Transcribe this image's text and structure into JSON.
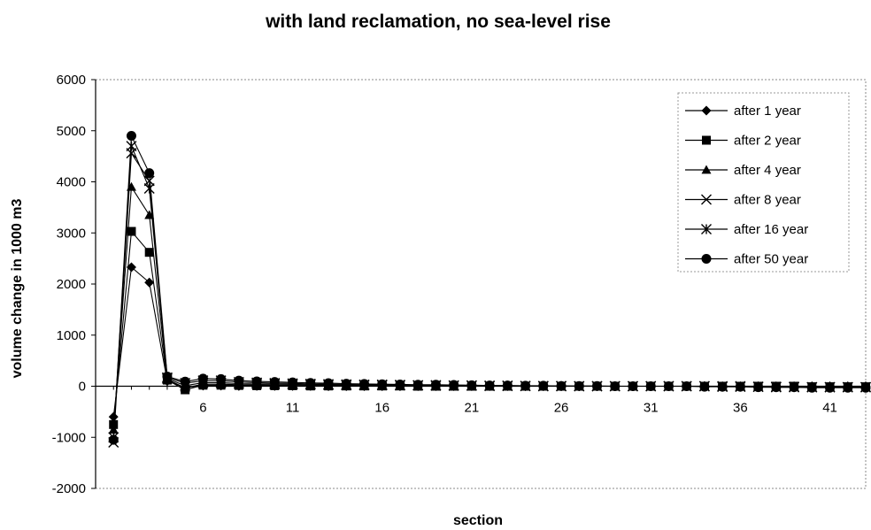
{
  "chart_data": {
    "type": "line",
    "title": "with land reclamation, no sea-level rise",
    "xlabel": "section",
    "ylabel": "volume change in 1000 m3",
    "ylim": [
      -2000,
      6000
    ],
    "yticks": [
      6000,
      5000,
      4000,
      3000,
      2000,
      1000,
      0,
      -1000,
      -2000
    ],
    "xlim": [
      0,
      43
    ],
    "xticks": [
      6,
      11,
      16,
      21,
      26,
      31,
      36,
      41
    ],
    "legend_position": "top-right",
    "grid": false,
    "x": [
      1,
      2,
      3,
      4,
      5,
      6,
      7,
      8,
      9,
      10,
      11,
      12,
      13,
      14,
      15,
      16,
      17,
      18,
      19,
      20,
      21,
      22,
      23,
      24,
      25,
      26,
      27,
      28,
      29,
      30,
      31,
      32,
      33,
      34,
      35,
      36,
      37,
      38,
      39,
      40,
      41,
      42,
      43
    ],
    "series": [
      {
        "name": "after 1 year",
        "marker": "diamond",
        "values": [
          -600,
          2330,
          2030,
          100,
          -20,
          10,
          10,
          5,
          5,
          5,
          5,
          5,
          0,
          0,
          0,
          0,
          0,
          0,
          0,
          0,
          0,
          0,
          0,
          0,
          0,
          0,
          0,
          0,
          0,
          0,
          0,
          0,
          0,
          0,
          0,
          0,
          0,
          0,
          0,
          0,
          0,
          0,
          0
        ]
      },
      {
        "name": "after 2 year",
        "marker": "square",
        "values": [
          -750,
          3030,
          2620,
          120,
          -70,
          20,
          20,
          15,
          10,
          10,
          10,
          5,
          5,
          5,
          5,
          5,
          5,
          0,
          0,
          0,
          0,
          0,
          0,
          0,
          0,
          0,
          0,
          0,
          0,
          0,
          0,
          0,
          0,
          0,
          0,
          0,
          0,
          0,
          0,
          -10,
          -10,
          -10,
          -10
        ]
      },
      {
        "name": "after 4 year",
        "marker": "triangle",
        "values": [
          -850,
          3900,
          3350,
          130,
          -30,
          40,
          40,
          30,
          25,
          20,
          15,
          15,
          10,
          10,
          10,
          10,
          5,
          5,
          5,
          5,
          5,
          0,
          0,
          0,
          0,
          0,
          0,
          0,
          0,
          0,
          0,
          0,
          0,
          0,
          0,
          0,
          0,
          -10,
          -10,
          -10,
          -10,
          -10,
          -10
        ]
      },
      {
        "name": "after 8 year",
        "marker": "x",
        "values": [
          -1100,
          4560,
          4020,
          150,
          10,
          70,
          70,
          50,
          45,
          40,
          35,
          30,
          25,
          20,
          20,
          20,
          15,
          15,
          10,
          10,
          10,
          5,
          5,
          5,
          0,
          0,
          0,
          0,
          0,
          0,
          0,
          0,
          0,
          0,
          0,
          0,
          -10,
          -10,
          -10,
          -20,
          -20,
          -20,
          -20
        ]
      },
      {
        "name": "after 16 year",
        "marker": "star",
        "values": [
          -1000,
          4700,
          3870,
          170,
          60,
          110,
          110,
          80,
          70,
          60,
          55,
          45,
          40,
          35,
          30,
          30,
          25,
          20,
          20,
          15,
          15,
          10,
          10,
          5,
          5,
          5,
          0,
          0,
          0,
          0,
          0,
          0,
          0,
          0,
          -10,
          -10,
          -10,
          -20,
          -20,
          -20,
          -20,
          -20,
          -20
        ]
      },
      {
        "name": "after 50 year",
        "marker": "circle",
        "values": [
          -1050,
          4900,
          4170,
          190,
          90,
          150,
          140,
          110,
          95,
          85,
          75,
          65,
          60,
          50,
          45,
          40,
          35,
          30,
          30,
          25,
          20,
          15,
          15,
          10,
          10,
          5,
          5,
          5,
          0,
          0,
          0,
          0,
          0,
          -10,
          -10,
          -10,
          -20,
          -20,
          -20,
          -30,
          -30,
          -30,
          -30
        ]
      }
    ]
  }
}
